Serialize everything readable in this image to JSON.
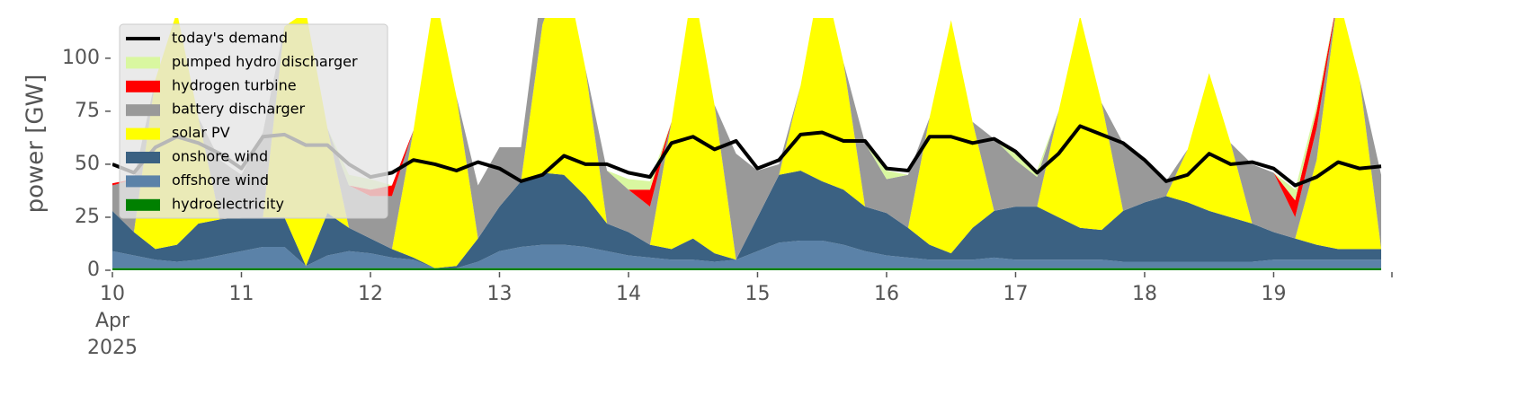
{
  "chart_data": {
    "type": "area",
    "y_label": "power [GW]",
    "x": [
      0,
      4,
      8,
      12,
      16,
      20,
      24,
      28,
      32,
      36,
      40,
      44,
      48,
      52,
      56,
      60,
      64,
      68,
      72,
      76,
      80,
      84,
      88,
      92,
      96,
      100,
      104,
      108,
      112,
      116,
      120,
      124,
      128,
      132,
      136,
      140,
      144,
      148,
      152,
      156,
      160,
      164,
      168,
      172,
      176,
      180,
      184,
      188,
      192,
      196,
      200,
      204,
      208,
      212,
      216,
      220,
      224,
      228,
      232,
      236
    ],
    "xlim": [
      0,
      238
    ],
    "xticks": [
      {
        "value": 0,
        "label": "10\nApr\n2025"
      },
      {
        "value": 24,
        "label": "11"
      },
      {
        "value": 48,
        "label": "12"
      },
      {
        "value": 72,
        "label": "13"
      },
      {
        "value": 96,
        "label": "14"
      },
      {
        "value": 120,
        "label": "15"
      },
      {
        "value": 144,
        "label": "16"
      },
      {
        "value": 168,
        "label": "17"
      },
      {
        "value": 192,
        "label": "18"
      },
      {
        "value": 216,
        "label": "19"
      }
    ],
    "ylim": [
      0,
      119
    ],
    "yticks": [
      0,
      25,
      50,
      75,
      100
    ],
    "series": [
      {
        "name": "today's demand",
        "color": "#000000",
        "style": "line",
        "values": [
          50,
          46,
          58,
          63,
          60,
          55,
          48,
          63,
          64,
          59,
          59,
          50,
          44,
          46,
          52,
          50,
          47,
          51,
          48,
          42,
          45,
          54,
          50,
          50,
          46,
          44,
          60,
          63,
          57,
          61,
          48,
          52,
          64,
          65,
          61,
          61,
          48,
          47,
          63,
          63,
          60,
          62,
          56,
          46,
          55,
          68,
          64,
          60,
          52,
          42,
          45,
          55,
          50,
          51,
          48,
          40,
          44,
          51,
          48,
          49
        ]
      },
      {
        "name": "pumped hydro discharger",
        "color": "#d9f7a0",
        "values": [
          0,
          0,
          0,
          0,
          0,
          0,
          0,
          0,
          0,
          0,
          0,
          5,
          5,
          0,
          0,
          0,
          0,
          0,
          0,
          0,
          0,
          0,
          0,
          0,
          5,
          4,
          0,
          0,
          0,
          0,
          0,
          0,
          0,
          0,
          0,
          0,
          4,
          0,
          0,
          0,
          0,
          0,
          3,
          3,
          0,
          0,
          0,
          0,
          0,
          0,
          0,
          0,
          0,
          0,
          0,
          5,
          3,
          0,
          0,
          0
        ]
      },
      {
        "name": "hydrogen turbine",
        "color": "#ff0000",
        "values": [
          1,
          0,
          0,
          0,
          0,
          0,
          0,
          0,
          0,
          0,
          0,
          0,
          3,
          5,
          0,
          0,
          0,
          0,
          0,
          0,
          0,
          0,
          0,
          0,
          0,
          8,
          0,
          0,
          0,
          0,
          0,
          0,
          0,
          0,
          0,
          0,
          0,
          0,
          0,
          0,
          0,
          0,
          0,
          0,
          0,
          0,
          0,
          0,
          0,
          0,
          0,
          0,
          0,
          0,
          0,
          8,
          8,
          0,
          0,
          0
        ]
      },
      {
        "name": "battery discharger",
        "color": "#999999",
        "values": [
          12,
          25,
          0,
          0,
          0,
          28,
          20,
          40,
          0,
          0,
          0,
          20,
          20,
          25,
          0,
          0,
          0,
          25,
          28,
          16,
          20,
          0,
          0,
          25,
          20,
          18,
          0,
          0,
          0,
          50,
          22,
          5,
          0,
          0,
          0,
          30,
          16,
          25,
          0,
          0,
          0,
          34,
          22,
          14,
          0,
          0,
          0,
          32,
          20,
          7,
          0,
          0,
          0,
          28,
          28,
          10,
          15,
          0,
          0,
          35
        ]
      },
      {
        "name": "solar PV",
        "color": "#ffff00",
        "values": [
          0,
          0,
          80,
          110,
          50,
          0,
          0,
          0,
          90,
          120,
          40,
          0,
          0,
          0,
          60,
          130,
          80,
          0,
          0,
          0,
          70,
          100,
          60,
          0,
          0,
          0,
          60,
          120,
          70,
          0,
          0,
          0,
          40,
          100,
          60,
          0,
          0,
          0,
          60,
          110,
          50,
          0,
          0,
          0,
          50,
          100,
          60,
          0,
          0,
          0,
          25,
          65,
          35,
          0,
          0,
          0,
          40,
          120,
          80,
          0
        ]
      },
      {
        "name": "onshore wind",
        "color": "#3b6182",
        "values": [
          19,
          11,
          5,
          8,
          17,
          17,
          16,
          14,
          14,
          0,
          20,
          11,
          7,
          4,
          1,
          0,
          1,
          11,
          21,
          31,
          34,
          33,
          24,
          13,
          11,
          6,
          5,
          10,
          4,
          0,
          16,
          32,
          33,
          28,
          26,
          21,
          20,
          14,
          7,
          3,
          15,
          22,
          25,
          25,
          20,
          15,
          14,
          24,
          28,
          31,
          28,
          24,
          21,
          18,
          13,
          10,
          7,
          5,
          5,
          5
        ]
      },
      {
        "name": "offshore wind",
        "color": "#5b82a8",
        "values": [
          8,
          6,
          4,
          3,
          4,
          6,
          8,
          10,
          10,
          1,
          6,
          8,
          7,
          5,
          4,
          0,
          0,
          3,
          8,
          10,
          11,
          11,
          10,
          8,
          6,
          5,
          4,
          4,
          3,
          4,
          8,
          12,
          13,
          13,
          11,
          8,
          6,
          5,
          4,
          4,
          4,
          5,
          4,
          4,
          4,
          4,
          4,
          3,
          3,
          3,
          3,
          3,
          3,
          3,
          4,
          4,
          4,
          4,
          4,
          4
        ]
      },
      {
        "name": "hydroelectricity",
        "color": "#008000",
        "values": [
          1,
          1,
          1,
          1,
          1,
          1,
          1,
          1,
          1,
          1,
          1,
          1,
          1,
          1,
          1,
          1,
          1,
          1,
          1,
          1,
          1,
          1,
          1,
          1,
          1,
          1,
          1,
          1,
          1,
          1,
          1,
          1,
          1,
          1,
          1,
          1,
          1,
          1,
          1,
          1,
          1,
          1,
          1,
          1,
          1,
          1,
          1,
          1,
          1,
          1,
          1,
          1,
          1,
          1,
          1,
          1,
          1,
          1,
          1,
          1
        ]
      }
    ]
  }
}
